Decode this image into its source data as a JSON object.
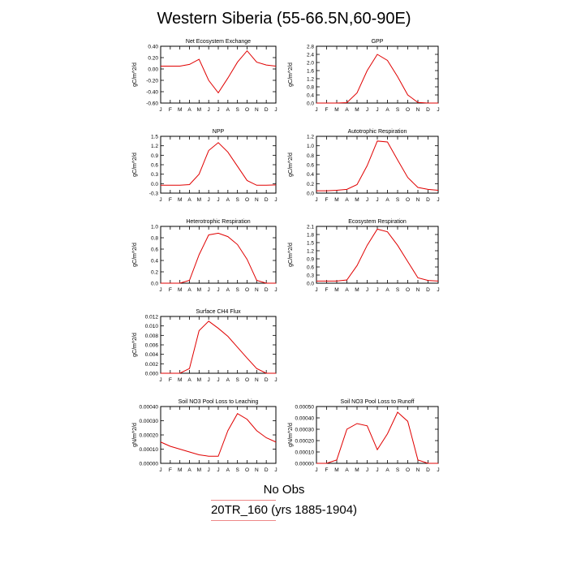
{
  "title": "Western Siberia (55-66.5N,60-90E)",
  "legend": [
    "No Obs",
    "20TR_160 (yrs 1885-1904)"
  ],
  "colors": {
    "series": "#e00000",
    "axis": "#000000"
  },
  "months": [
    "J",
    "F",
    "M",
    "A",
    "M",
    "J",
    "J",
    "A",
    "S",
    "O",
    "N",
    "D",
    "J"
  ],
  "chart_data": [
    {
      "type": "line",
      "title": "Net Ecosystem Exchange",
      "ylabel": "gC/m^2/d",
      "ylim": [
        -0.6,
        0.4
      ],
      "yticks": [
        "0.40",
        "0.20",
        "0.00",
        "-0.20",
        "-0.40",
        "-0.60"
      ],
      "series": [
        {
          "values": [
            0.05,
            0.05,
            0.05,
            0.08,
            0.17,
            -0.2,
            -0.42,
            -0.16,
            0.12,
            0.32,
            0.12,
            0.07,
            0.05
          ]
        }
      ]
    },
    {
      "type": "line",
      "title": "GPP",
      "ylabel": "gC/m^2/d",
      "ylim": [
        0,
        2.8
      ],
      "yticks": [
        "2.8",
        "2.4",
        "2.0",
        "1.6",
        "1.2",
        "0.8",
        "0.4",
        "0.0"
      ],
      "series": [
        {
          "values": [
            0,
            0,
            0,
            0.02,
            0.5,
            1.6,
            2.4,
            2.1,
            1.3,
            0.4,
            0.03,
            0,
            0
          ]
        }
      ]
    },
    {
      "type": "line",
      "title": "NPP",
      "ylabel": "gC/m^2/d",
      "ylim": [
        -0.3,
        1.5
      ],
      "yticks": [
        "1.5",
        "1.2",
        "0.9",
        "0.6",
        "0.3",
        "0.0",
        "-0.3"
      ],
      "series": [
        {
          "values": [
            -0.05,
            -0.05,
            -0.05,
            -0.03,
            0.3,
            1.05,
            1.3,
            1.0,
            0.55,
            0.1,
            -0.05,
            -0.05,
            -0.04
          ]
        }
      ]
    },
    {
      "type": "line",
      "title": "Autotrophic Respiration",
      "ylabel": "gC/m^2/d",
      "ylim": [
        0,
        1.2
      ],
      "yticks": [
        "1.2",
        "1.0",
        "0.8",
        "0.6",
        "0.4",
        "0.2",
        "0.0"
      ],
      "series": [
        {
          "values": [
            0.05,
            0.05,
            0.06,
            0.08,
            0.18,
            0.58,
            1.1,
            1.08,
            0.7,
            0.33,
            0.12,
            0.08,
            0.06
          ]
        }
      ]
    },
    {
      "type": "line",
      "title": "Heterotrophic Respiration",
      "ylabel": "gC/m^2/d",
      "ylim": [
        0,
        1.0
      ],
      "yticks": [
        "1.0",
        "0.8",
        "0.6",
        "0.4",
        "0.2",
        "0.0"
      ],
      "series": [
        {
          "values": [
            0,
            0,
            0,
            0.05,
            0.5,
            0.85,
            0.88,
            0.82,
            0.68,
            0.42,
            0.05,
            0,
            0
          ]
        }
      ]
    },
    {
      "type": "line",
      "title": "Ecosystem Respiration",
      "ylabel": "gC/m^2/d",
      "ylim": [
        0,
        2.1
      ],
      "yticks": [
        "2.1",
        "1.8",
        "1.5",
        "1.2",
        "0.9",
        "0.6",
        "0.3",
        "0.0"
      ],
      "series": [
        {
          "values": [
            0.08,
            0.08,
            0.08,
            0.12,
            0.65,
            1.4,
            2.0,
            1.9,
            1.4,
            0.8,
            0.2,
            0.1,
            0.08
          ]
        }
      ]
    },
    {
      "type": "line",
      "title": "Surface CH4 Flux",
      "ylabel": "gC/m^2/d",
      "ylim": [
        0,
        0.012
      ],
      "yticks": [
        "0.012",
        "0.010",
        "0.008",
        "0.006",
        "0.004",
        "0.002",
        "0.000"
      ],
      "series": [
        {
          "values": [
            0,
            0,
            0,
            0.001,
            0.009,
            0.011,
            0.0095,
            0.0078,
            0.0055,
            0.0032,
            0.001,
            0,
            0
          ]
        }
      ]
    },
    {
      "type": "line",
      "title": "Soil NO3 Pool Loss to Leaching",
      "ylabel": "gN/m^2/d",
      "ylim": [
        0,
        0.0004
      ],
      "yticks": [
        "0.00040",
        "0.00030",
        "0.00020",
        "0.00010",
        "0.00000"
      ],
      "series": [
        {
          "values": [
            0.00015,
            0.00012,
            0.0001,
            8e-05,
            6e-05,
            5e-05,
            5e-05,
            0.00023,
            0.00035,
            0.00031,
            0.00023,
            0.00018,
            0.00015
          ]
        }
      ]
    },
    {
      "type": "line",
      "title": "Soil NO3 Pool Loss to Runoff",
      "ylabel": "gN/m^2/d",
      "ylim": [
        0,
        0.0005
      ],
      "yticks": [
        "0.00050",
        "0.00040",
        "0.00030",
        "0.00020",
        "0.00010",
        "0.00000"
      ],
      "series": [
        {
          "values": [
            0,
            0,
            3e-05,
            0.0003,
            0.00035,
            0.00033,
            0.00012,
            0.00026,
            0.00045,
            0.00037,
            3e-05,
            0,
            0
          ]
        }
      ]
    }
  ]
}
